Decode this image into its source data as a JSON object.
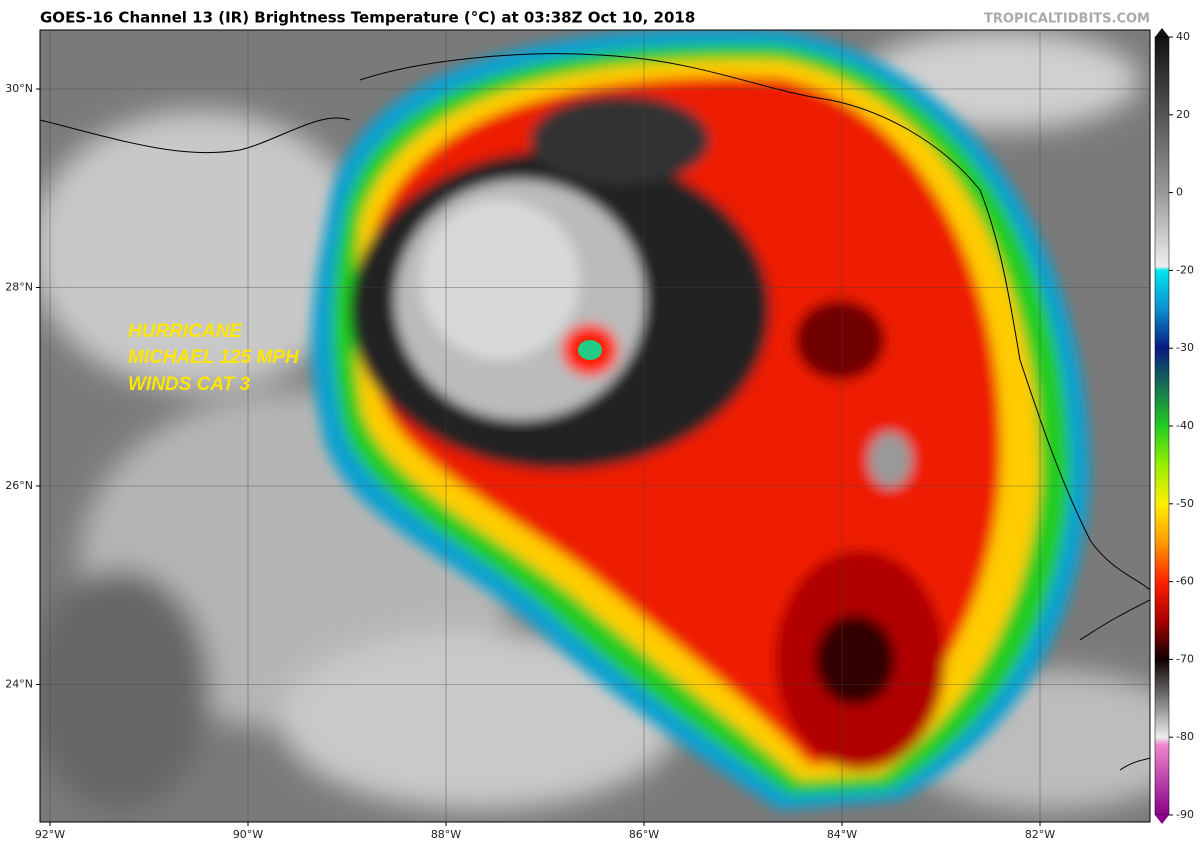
{
  "header": {
    "title": "GOES-16 Channel 13 (IR) Brightness Temperature (°C) at 03:38Z Oct 10, 2018",
    "source": "TROPICALTIDBITS.COM"
  },
  "map": {
    "lat_labels": [
      "30°N",
      "28°N",
      "26°N",
      "24°N"
    ],
    "lon_labels": [
      "92°W",
      "90°W",
      "88°W",
      "86°W",
      "84°W",
      "82°W"
    ],
    "annotation": [
      "HURRICANE",
      "MICHAEL 125 MPH",
      "WINDS CAT 3"
    ]
  },
  "colorbar": {
    "ticks": [
      40,
      20,
      0,
      -20,
      -30,
      -40,
      -50,
      -60,
      -70,
      -80,
      -90
    ]
  }
}
